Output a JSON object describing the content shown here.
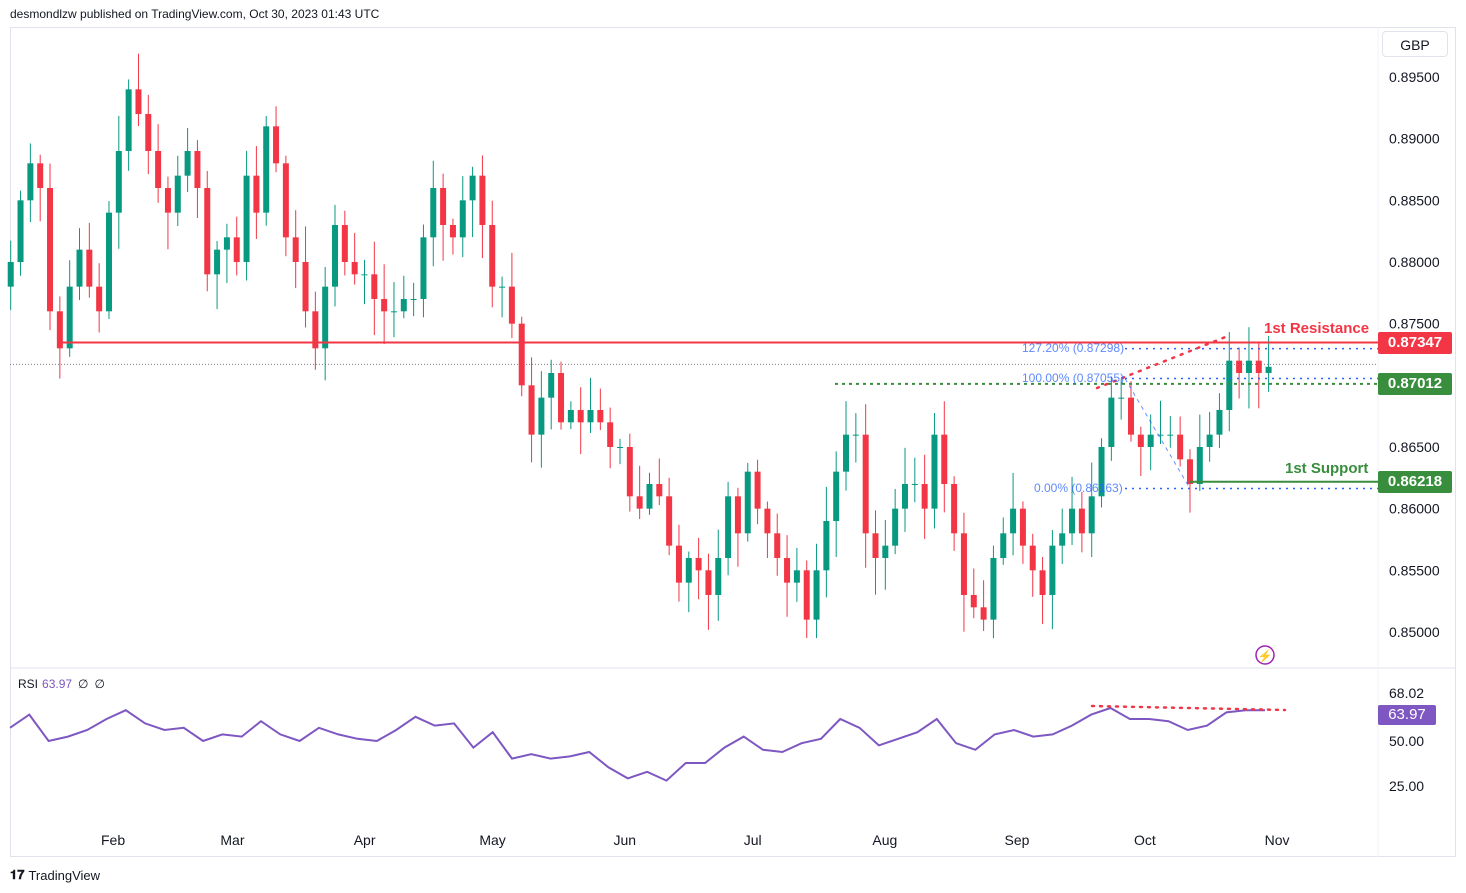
{
  "header": {
    "published": "desmondlzw published on TradingView.com, Oct 30, 2023 01:43 UTC"
  },
  "currency": "GBP",
  "brand": "TradingView",
  "colors": {
    "up": "#089981",
    "down": "#f23645",
    "resistance": "#f23645",
    "support": "#388e3c",
    "rsi": "#7e57c2",
    "fib": "#2962ff"
  },
  "annotations": {
    "resistance_label": "1st Resistance",
    "resistance_value": "0.87347",
    "support_label": "1st Support",
    "support_value": "0.86218",
    "pivot_value": "0.87012",
    "fib_127": "127.20% (0.87298)",
    "fib_100": "100.00% (0.87055)",
    "fib_0": "0.00% (0.86163)"
  },
  "rsi": {
    "label": "RSI",
    "value": "63.97",
    "p1": "∅",
    "p2": "∅",
    "ticks": [
      "68.02",
      "50.00",
      "25.00"
    ]
  },
  "chart_data": {
    "type": "candlestick",
    "title": "GBP daily",
    "price_ticks": [
      "0.89500",
      "0.89000",
      "0.88500",
      "0.88000",
      "0.87500",
      "0.86500",
      "0.86000",
      "0.85500",
      "0.85000"
    ],
    "ylim": [
      0.8495,
      0.8975
    ],
    "month_ticks": [
      {
        "label": "Feb",
        "day": 32
      },
      {
        "label": "Mar",
        "day": 60
      },
      {
        "label": "Apr",
        "day": 91
      },
      {
        "label": "May",
        "day": 121
      },
      {
        "label": "Jun",
        "day": 152
      },
      {
        "label": "Jul",
        "day": 182
      },
      {
        "label": "Aug",
        "day": 213
      },
      {
        "label": "Sep",
        "day": 244
      },
      {
        "label": "Oct",
        "day": 274
      },
      {
        "label": "Nov",
        "day": 305
      }
    ],
    "day_range": [
      8,
      303
    ],
    "closes": [
      0.88,
      0.885,
      0.888,
      0.886,
      0.876,
      0.873,
      0.878,
      0.881,
      0.878,
      0.876,
      0.884,
      0.889,
      0.894,
      0.892,
      0.889,
      0.886,
      0.884,
      0.887,
      0.889,
      0.886,
      0.879,
      0.881,
      0.882,
      0.88,
      0.887,
      0.884,
      0.891,
      0.888,
      0.882,
      0.88,
      0.876,
      0.873,
      0.878,
      0.883,
      0.88,
      0.879,
      0.879,
      0.877,
      0.876,
      0.876,
      0.877,
      0.877,
      0.882,
      0.886,
      0.883,
      0.882,
      0.885,
      0.887,
      0.883,
      0.878,
      0.878,
      0.875,
      0.87,
      0.866,
      0.869,
      0.871,
      0.867,
      0.868,
      0.867,
      0.868,
      0.867,
      0.865,
      0.865,
      0.861,
      0.86,
      0.862,
      0.861,
      0.857,
      0.854,
      0.856,
      0.855,
      0.853,
      0.856,
      0.861,
      0.858,
      0.863,
      0.86,
      0.858,
      0.856,
      0.854,
      0.855,
      0.851,
      0.855,
      0.859,
      0.863,
      0.866,
      0.866,
      0.858,
      0.856,
      0.857,
      0.86,
      0.862,
      0.862,
      0.86,
      0.866,
      0.862,
      0.858,
      0.853,
      0.852,
      0.851,
      0.856,
      0.858,
      0.86,
      0.857,
      0.855,
      0.853,
      0.857,
      0.858,
      0.86,
      0.858,
      0.861,
      0.865,
      0.869,
      0.869,
      0.866,
      0.865,
      0.866,
      0.866,
      0.866,
      0.864,
      0.862,
      0.865,
      0.866,
      0.868,
      0.872,
      0.871,
      0.872,
      0.871,
      0.8715
    ],
    "levels": {
      "resistance": 0.87347,
      "pivot": 0.87012,
      "support": 0.86218,
      "fib127": 0.87298,
      "fib100": 0.87055,
      "fib0": 0.86163,
      "last": 0.8717
    },
    "rsi_values": [
      56,
      62,
      50,
      52,
      55,
      60,
      64,
      58,
      55,
      56,
      50,
      53,
      52,
      59,
      53,
      50,
      56,
      53,
      51,
      50,
      55,
      61,
      57,
      58,
      47,
      54,
      42,
      44,
      42,
      43,
      45,
      38,
      33,
      36,
      32,
      40,
      40,
      47,
      52,
      46,
      45,
      49,
      51,
      60,
      56,
      48,
      51,
      54,
      60,
      49,
      46,
      53,
      55,
      52,
      53,
      57,
      62,
      65,
      60,
      60,
      59,
      55,
      57,
      63,
      64,
      64
    ]
  }
}
